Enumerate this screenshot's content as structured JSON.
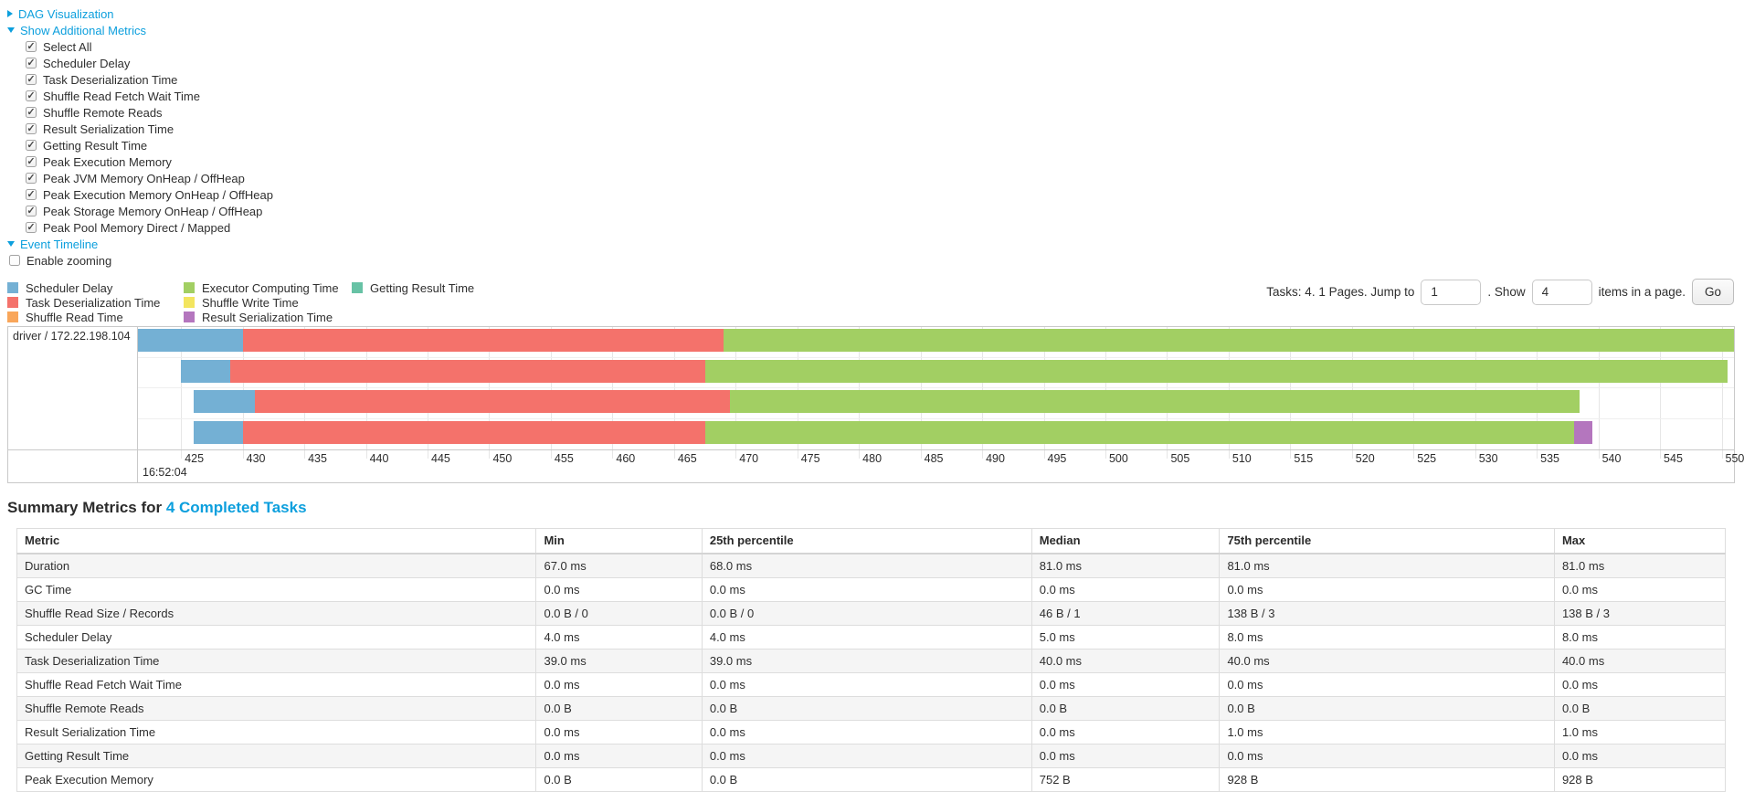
{
  "colors": {
    "link": "#0c9fdd",
    "scheduler_delay": "#74b0d4",
    "task_deserialization": "#f4726b",
    "shuffle_read": "#f9a65a",
    "executor_computing": "#a2cf63",
    "shuffle_write": "#f3e55f",
    "result_serialization": "#b476be",
    "getting_result": "#67c2a5"
  },
  "toggles": {
    "dag_link": "DAG Visualization",
    "metrics_link": "Show Additional Metrics",
    "timeline_link": "Event Timeline",
    "enable_zooming_label": "Enable zooming"
  },
  "metric_checkboxes": [
    {
      "label": "Select All",
      "checked": true
    },
    {
      "label": "Scheduler Delay",
      "checked": true
    },
    {
      "label": "Task Deserialization Time",
      "checked": true
    },
    {
      "label": "Shuffle Read Fetch Wait Time",
      "checked": true
    },
    {
      "label": "Shuffle Remote Reads",
      "checked": true
    },
    {
      "label": "Result Serialization Time",
      "checked": true
    },
    {
      "label": "Getting Result Time",
      "checked": true
    },
    {
      "label": "Peak Execution Memory",
      "checked": true
    },
    {
      "label": "Peak JVM Memory OnHeap / OffHeap",
      "checked": true
    },
    {
      "label": "Peak Execution Memory OnHeap / OffHeap",
      "checked": true
    },
    {
      "label": "Peak Storage Memory OnHeap / OffHeap",
      "checked": true
    },
    {
      "label": "Peak Pool Memory Direct / Mapped",
      "checked": true
    }
  ],
  "legend": {
    "columns": [
      [
        {
          "label": "Scheduler Delay",
          "color": "scheduler_delay"
        },
        {
          "label": "Task Deserialization Time",
          "color": "task_deserialization"
        },
        {
          "label": "Shuffle Read Time",
          "color": "shuffle_read"
        }
      ],
      [
        {
          "label": "Executor Computing Time",
          "color": "executor_computing"
        },
        {
          "label": "Shuffle Write Time",
          "color": "shuffle_write"
        },
        {
          "label": "Result Serialization Time",
          "color": "result_serialization"
        }
      ],
      [
        {
          "label": "Getting Result Time",
          "color": "getting_result"
        }
      ]
    ]
  },
  "pagination": {
    "prefix": "Tasks: 4. 1 Pages. Jump to",
    "jump_value": "1",
    "mid": ". Show",
    "show_value": "4",
    "suffix": "items in a page.",
    "go_label": "Go"
  },
  "chart_data": {
    "type": "timeline",
    "group_label": "driver / 172.22.198.104",
    "axis": {
      "min": 421.5,
      "max": 551,
      "tick_start": 425,
      "tick_step": 5,
      "tick_end": 550,
      "major_label": "16:52:04"
    },
    "tasks": [
      {
        "segments": [
          {
            "metric": "scheduler_delay",
            "start": 421.5,
            "end": 430
          },
          {
            "metric": "task_deserialization",
            "start": 430,
            "end": 469
          },
          {
            "metric": "executor_computing",
            "start": 469,
            "end": 551
          }
        ]
      },
      {
        "segments": [
          {
            "metric": "scheduler_delay",
            "start": 425,
            "end": 429
          },
          {
            "metric": "task_deserialization",
            "start": 429,
            "end": 467.5
          },
          {
            "metric": "executor_computing",
            "start": 467.5,
            "end": 550.5
          }
        ]
      },
      {
        "segments": [
          {
            "metric": "scheduler_delay",
            "start": 426,
            "end": 431
          },
          {
            "metric": "task_deserialization",
            "start": 431,
            "end": 469.5
          },
          {
            "metric": "executor_computing",
            "start": 469.5,
            "end": 538.5
          }
        ]
      },
      {
        "segments": [
          {
            "metric": "scheduler_delay",
            "start": 426,
            "end": 430
          },
          {
            "metric": "task_deserialization",
            "start": 430,
            "end": 467.5
          },
          {
            "metric": "executor_computing",
            "start": 467.5,
            "end": 538
          },
          {
            "metric": "result_serialization",
            "start": 538,
            "end": 539.5
          }
        ]
      }
    ]
  },
  "summary": {
    "heading": "Summary Metrics for ",
    "heading_link": "4 Completed Tasks",
    "table": {
      "headers": [
        "Metric",
        "Min",
        "25th percentile",
        "Median",
        "75th percentile",
        "Max"
      ],
      "rows": [
        [
          "Duration",
          "67.0 ms",
          "68.0 ms",
          "81.0 ms",
          "81.0 ms",
          "81.0 ms"
        ],
        [
          "GC Time",
          "0.0 ms",
          "0.0 ms",
          "0.0 ms",
          "0.0 ms",
          "0.0 ms"
        ],
        [
          "Shuffle Read Size / Records",
          "0.0 B / 0",
          "0.0 B / 0",
          "46 B / 1",
          "138 B / 3",
          "138 B / 3"
        ],
        [
          "Scheduler Delay",
          "4.0 ms",
          "4.0 ms",
          "5.0 ms",
          "8.0 ms",
          "8.0 ms"
        ],
        [
          "Task Deserialization Time",
          "39.0 ms",
          "39.0 ms",
          "40.0 ms",
          "40.0 ms",
          "40.0 ms"
        ],
        [
          "Shuffle Read Fetch Wait Time",
          "0.0 ms",
          "0.0 ms",
          "0.0 ms",
          "0.0 ms",
          "0.0 ms"
        ],
        [
          "Shuffle Remote Reads",
          "0.0 B",
          "0.0 B",
          "0.0 B",
          "0.0 B",
          "0.0 B"
        ],
        [
          "Result Serialization Time",
          "0.0 ms",
          "0.0 ms",
          "0.0 ms",
          "1.0 ms",
          "1.0 ms"
        ],
        [
          "Getting Result Time",
          "0.0 ms",
          "0.0 ms",
          "0.0 ms",
          "0.0 ms",
          "0.0 ms"
        ],
        [
          "Peak Execution Memory",
          "0.0 B",
          "0.0 B",
          "752 B",
          "928 B",
          "928 B"
        ]
      ]
    }
  }
}
